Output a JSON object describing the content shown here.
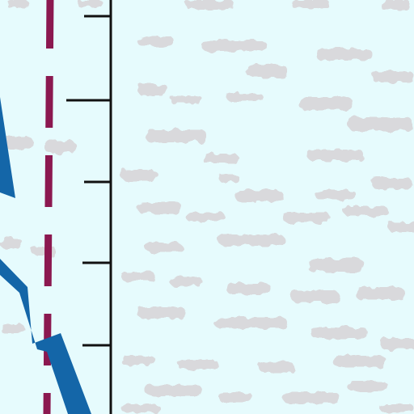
{
  "map": {
    "background_color": "#e6fbfd",
    "ice_texture_color": "#d9d9dc",
    "route": {
      "color": "#1466a8",
      "icon": "route-line"
    },
    "boundary": {
      "color": "#8b1850",
      "style": "dashed",
      "icon": "boundary-line"
    },
    "meridian": {
      "color": "#111111",
      "icon": "meridian-line",
      "tick_count": 5
    }
  }
}
